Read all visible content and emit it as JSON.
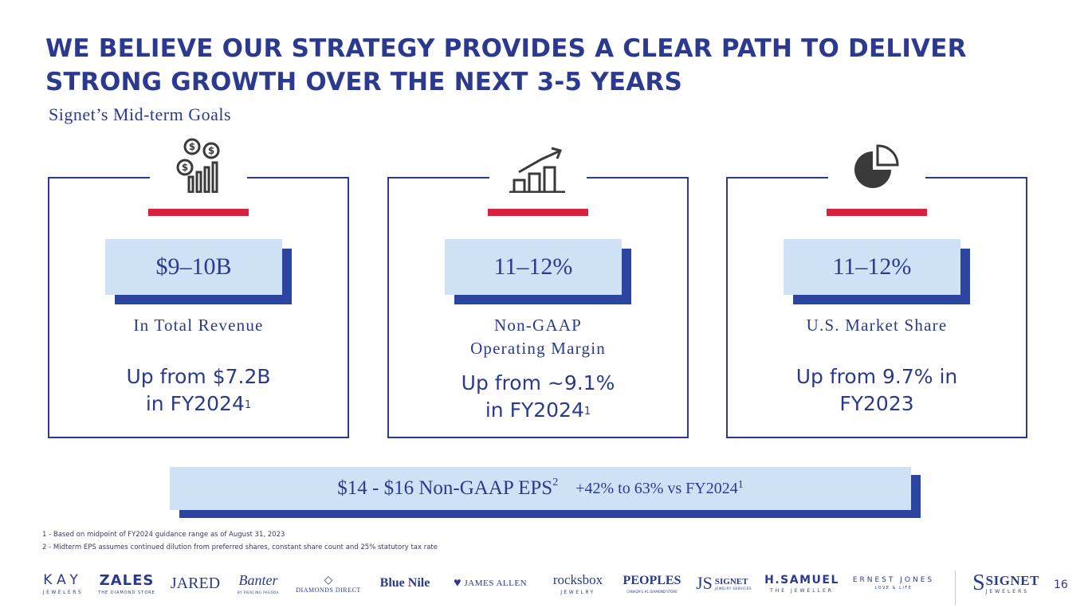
{
  "title": "WE BELIEVE OUR STRATEGY PROVIDES A CLEAR PATH TO DELIVER STRONG GROWTH OVER THE NEXT 3-5 YEARS",
  "subtitle": "Signet’s Mid-term Goals",
  "cards": [
    {
      "icon": "money-chart-icon",
      "value": "$9–10B",
      "label_line1": "In Total Revenue",
      "label_line2": "",
      "desc_line1": "Up from $7.2B",
      "desc_line2": "in FY2024",
      "desc_sup": "1"
    },
    {
      "icon": "growth-chart-icon",
      "value": "11–12%",
      "label_line1": "Non-GAAP",
      "label_line2": "Operating Margin",
      "desc_line1": "Up from ~9.1%",
      "desc_line2": "in FY2024",
      "desc_sup": "1"
    },
    {
      "icon": "pie-chart-icon",
      "value": "11–12%",
      "label_line1": "U.S. Market Share",
      "label_line2": "",
      "desc_line1": "Up from 9.7% in",
      "desc_line2": "FY2023",
      "desc_sup": ""
    }
  ],
  "eps": {
    "main": "$14 - $16 Non-GAAP EPS",
    "main_sup": "2",
    "pct": "+42% to 63% vs FY2024",
    "pct_sup": "1"
  },
  "footnotes": [
    "1 - Based on midpoint of FY2024 guidance range as of August 31, 2023",
    "2 - Midterm EPS assumes continued dilution from preferred shares, constant share count and 25% statutory tax rate"
  ],
  "logos": {
    "kay": "KAY",
    "kay_sub": "JEWELERS",
    "zales": "ZALES",
    "zales_sub": "THE DIAMOND STORE",
    "jared": "JARED",
    "banter": "Banter",
    "banter_sub": "BY PIERCING PAGODA",
    "diamonds_direct": "DIAMONDS DIRECT",
    "blue_nile": "Blue Nile",
    "james_allen": "JAMES ALLEN",
    "rocksbox": "rocksbox",
    "rocksbox_sub": "JEWELRY",
    "peoples": "PEOPLES",
    "peoples_sub": "CANADA'S #1 DIAMOND STORE",
    "js_signet": "SIGNET",
    "js_sub": "JEWELRY SERVICES",
    "hsamuel": "H.SAMUEL",
    "hsamuel_sub": "THE JEWELLER",
    "ernest_jones": "ERNEST JONES",
    "ernest_sub": "LOVE & LIFE",
    "signet": "SIGNET",
    "signet_sub": "JEWELERS"
  },
  "page_number": "16",
  "colors": {
    "navy": "#2b3a8f",
    "red": "#d8213f",
    "light_blue": "#cfe1f4",
    "shadow_blue": "#2b45a0"
  }
}
